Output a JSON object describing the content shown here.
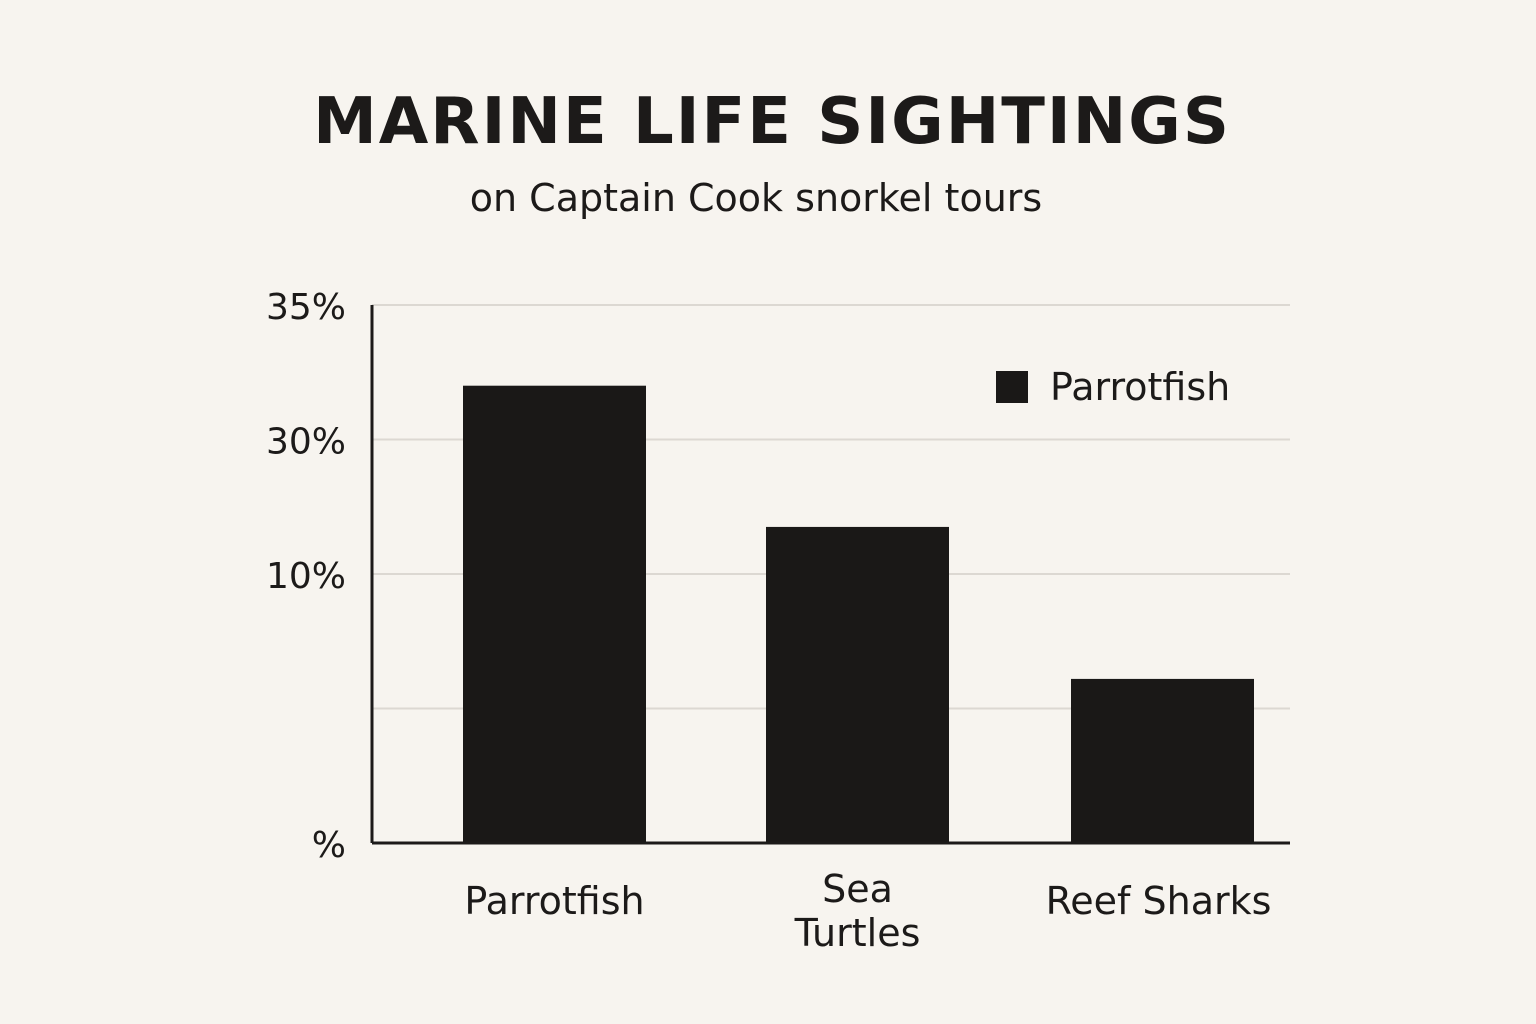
{
  "chart_data": {
    "type": "bar",
    "title": "MARINE LIFE SIGHTINGS",
    "subtitle": "on Captain Cook snorkel tours",
    "categories": [
      "Parrotfish",
      "Sea Turtles",
      "Reef Sharks"
    ],
    "category_lines": [
      [
        "Parrotfish"
      ],
      [
        "Sea",
        "Turtles"
      ],
      [
        "Reef Sharks"
      ]
    ],
    "series": [
      {
        "name": "Parrotfish",
        "values": [
          34,
          23.5,
          12.2
        ],
        "color": "#1a1817"
      }
    ],
    "y_tick_labels": [
      "%",
      "",
      "10%",
      "30%",
      "35%"
    ],
    "xlabel": "",
    "ylabel": "",
    "ylim": [
      0,
      40
    ],
    "grid": true,
    "legend_position": "top-right",
    "colors": {
      "background": "#f7f4ef",
      "bar": "#1a1817",
      "axis": "#1c1a19",
      "grid": "#dcd8d2"
    }
  }
}
